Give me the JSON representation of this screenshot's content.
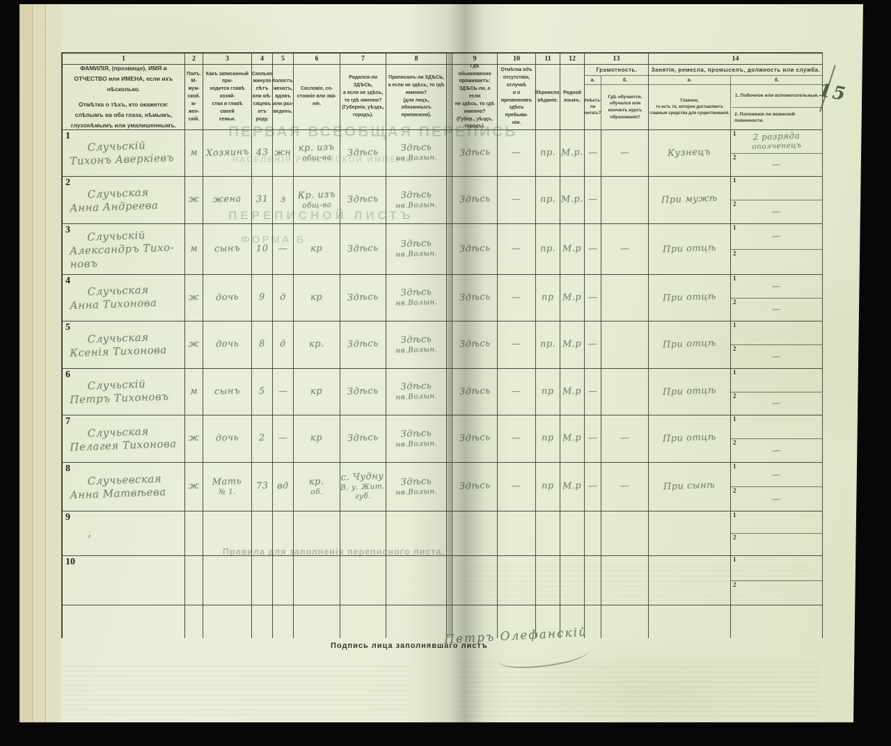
{
  "page": {
    "margin_page_number": "15",
    "signature_label": "Подпись лица заполнявшаго листъ",
    "signature": "Петръ Олефанскій"
  },
  "bleedthrough": {
    "line1": "ПЕРВАЯ ВСЕОБЩАЯ ПЕРЕПИСЬ",
    "line2": "НАСЕЛЕНІЯ РОССІЙСКОЙ ИМПЕРІИ",
    "line3": "ПЕРЕПИСНОЙ ЛИСТЪ",
    "line4": "ФОРМА Б",
    "line5": "Правила для заполненія переписного листа."
  },
  "table": {
    "col_numbers": [
      "1",
      "2",
      "3",
      "4",
      "5",
      "6",
      "7",
      "8",
      "9",
      "10",
      "11",
      "12",
      "13",
      "14"
    ],
    "headers": {
      "c1a": "ФАМИЛІЯ, (прозвище), ИМЯ и ОТЧЕСТВО или ИМЕНА, если ихъ нѣсколько.",
      "c1b": "Отмѣтка о тѣхъ, кто окажется: слѣпымъ на оба глаза, нѣмымъ, глухонѣмымъ или умалишеннымъ.",
      "c2": "Полъ.\nМ-муж-\nской.\nж-жен-\nскій.",
      "c3": "Какъ записанный при-\nходится главѣ хозяй-\nства и главѣ своей\nсемьи.",
      "c4": "Сколько\nминуло\nлѣтъ\nили мѣ-\nсяцевъ\nотъ роду.",
      "c5": "Холостъ,\nженатъ,\nвдовъ\nили раз-\nведенъ.",
      "c6": "Сословіе, со-\nстояніе или зва-\nніе.",
      "c7": "Родился-ли ЗДѢСЬ,\nа если не здѣсь,\nто гдѣ именно?\n(Губернія, уѣздъ, городъ).",
      "c8": "Приписанъ-ли ЗДѢСЬ,\nа если не здѣсь, то гдѣ\nименно?\n(для лицъ, обязанныхъ\nприпискою).",
      "c9": "Гдѣ обыкновенно\nпроживаетъ:\nЗДѢСЬ-ли, а если\nне здѣсь, то гдѣ\nименно?\n(Губер., уѣздъ, городъ).",
      "c10": "Отмѣтка объ\nотсутствіи, отлучкѣ\nи о временномъ\nздѣсь пребыва-\nніи.",
      "c11": "Вѣроиспо-\nвѣданіе.",
      "c12": "Родной\nязыкъ.",
      "c13_title": "Грамотность.",
      "c13_a_label": "а.",
      "c13_b_label": "б.",
      "c13_a": "Умѣетъ-\nли\nчитать?",
      "c13_b": "Гдѣ обучается,\nобучался или\nкончилъ курсъ\nобразованія?",
      "c14_title": "Занятія, ремесла, промыселъ, должность или служба.",
      "c14_a_label": "а.",
      "c14_b_label": "б.",
      "c14_a": "Главное,\nто есть то, которое доставляетъ\nглавныя средства для существованія.",
      "c14_b1": "1.  Побочное или вспомогательныя.",
      "c14_b2": "2.  Положеніе по воинской повинности."
    },
    "row_half_labels": [
      "1",
      "2"
    ],
    "rows": [
      {
        "n": "1",
        "name": [
          "Случьскій",
          "Тихонъ Аверкіевъ"
        ],
        "sex": "м",
        "rel": [
          "Хозяинъ"
        ],
        "age": "43",
        "mar": "жн",
        "est": [
          "кр. изъ",
          "общ-ва"
        ],
        "born": [
          "Здѣсь"
        ],
        "reg": [
          "Здѣсь",
          "нв.Волын."
        ],
        "res": "Здѣсь",
        "abs": "—",
        "faith": "пр.",
        "lang": "М.р.",
        "lit_a": "—",
        "lit_b": "—",
        "occ": [
          "Кузнецъ"
        ],
        "side1": [
          "2 разряда",
          "ополченецъ"
        ],
        "side2": "—"
      },
      {
        "n": "2",
        "name": [
          "Случьская",
          "Анна Андреева"
        ],
        "sex": "ж",
        "rel": [
          "жена"
        ],
        "age": "31",
        "mar": "з",
        "est": [
          "Кр. изъ",
          "общ-ва"
        ],
        "born": [
          "Здѣсь"
        ],
        "reg": [
          "Здѣсь",
          "нв.Волын."
        ],
        "res": "Здѣсь",
        "abs": "—",
        "faith": "пр.",
        "lang": "М.р.",
        "lit_a": "—",
        "lit_b": "",
        "occ": [
          "При мужѣ"
        ],
        "side1": [],
        "side2": "—"
      },
      {
        "n": "3",
        "name": [
          "Случьскій",
          "Александръ Тихо-",
          "новъ"
        ],
        "sex": "м",
        "rel": [
          "сынъ"
        ],
        "age": "10",
        "mar": "—",
        "est": [
          "кр"
        ],
        "born": [
          "Здѣсь"
        ],
        "reg": [
          "Здѣсь",
          "нв.Волын."
        ],
        "res": "Здѣсь",
        "abs": "—",
        "faith": "пр.",
        "lang": "М.р",
        "lit_a": "—",
        "lit_b": "—",
        "occ": [
          "При отцѣ"
        ],
        "side1": [
          "—"
        ],
        "side2": ""
      },
      {
        "n": "4",
        "name": [
          "Случьская",
          "Анна Тихонова"
        ],
        "sex": "ж",
        "rel": [
          "дочь"
        ],
        "age": "9",
        "mar": "д",
        "est": [
          "кр"
        ],
        "born": [
          "Здѣсь"
        ],
        "reg": [
          "Здѣсь",
          "нв.Волын."
        ],
        "res": "Здѣсь",
        "abs": "—",
        "faith": "пр",
        "lang": "М.р",
        "lit_a": "—",
        "lit_b": "",
        "occ": [
          "При отцѣ"
        ],
        "side1": [
          "—"
        ],
        "side2": "—"
      },
      {
        "n": "5",
        "name": [
          "Случьская",
          "Ксенія Тихонова"
        ],
        "sex": "ж",
        "rel": [
          "дочь"
        ],
        "age": "8",
        "mar": "д",
        "est": [
          "кр."
        ],
        "born": [
          "Здѣсь"
        ],
        "reg": [
          "Здѣсь",
          "нв.Волын."
        ],
        "res": "Здѣсь",
        "abs": "—",
        "faith": "пр.",
        "lang": "М.р",
        "lit_a": "—",
        "lit_b": "",
        "occ": [
          "При отцѣ"
        ],
        "side1": [],
        "side2": "—"
      },
      {
        "n": "6",
        "name": [
          "Случьскій",
          "Петръ Тихоновъ"
        ],
        "sex": "м",
        "rel": [
          "сынъ"
        ],
        "age": "5",
        "mar": "—",
        "est": [
          "кр"
        ],
        "born": [
          "Здѣсь"
        ],
        "reg": [
          "Здѣсь",
          "нв.Волын."
        ],
        "res": "Здѣсь",
        "abs": "—",
        "faith": "пр",
        "lang": "М.р",
        "lit_a": "—",
        "lit_b": "",
        "occ": [
          "При отцѣ"
        ],
        "side1": [],
        "side2": "—"
      },
      {
        "n": "7",
        "name": [
          "Случьская",
          "Пелагея Тихонова"
        ],
        "sex": "ж",
        "rel": [
          "дочь"
        ],
        "age": "2",
        "mar": "—",
        "est": [
          "кр"
        ],
        "born": [
          "Здѣсь"
        ],
        "reg": [
          "Здѣсь",
          "нв.Волын."
        ],
        "res": "Здѣсь",
        "abs": "—",
        "faith": "пр",
        "lang": "М.р",
        "lit_a": "—",
        "lit_b": "—",
        "occ": [
          "При отцѣ"
        ],
        "side1": [],
        "side2": "—"
      },
      {
        "n": "8",
        "name": [
          "Случьевская",
          "Анна Матвѣева"
        ],
        "sex": "ж",
        "rel": [
          "Мать",
          "№ 1."
        ],
        "age": "73",
        "mar": "вд",
        "est": [
          "кр.",
          "об."
        ],
        "born": [
          "с. Чудну",
          "В. у. Жит.",
          "губ."
        ],
        "reg": [
          "Здѣсь",
          "нв.Волын."
        ],
        "res": "Здѣсь",
        "abs": "—",
        "faith": "пр",
        "lang": "М.р",
        "lit_a": "—",
        "lit_b": "—",
        "occ": [
          "При сынѣ"
        ],
        "side1": [
          "—"
        ],
        "side2": "—"
      },
      {
        "n": "9",
        "name": [
          ","
        ],
        "sex": "",
        "rel": [],
        "age": "",
        "mar": "",
        "est": [],
        "born": [],
        "reg": [],
        "res": "",
        "abs": "",
        "faith": "",
        "lang": "",
        "lit_a": "",
        "lit_b": "",
        "occ": [],
        "side1": [],
        "side2": ""
      },
      {
        "n": "10",
        "name": [],
        "sex": "",
        "rel": [],
        "age": "",
        "mar": "",
        "est": [],
        "born": [],
        "reg": [],
        "res": "",
        "abs": "",
        "faith": "",
        "lang": "",
        "lit_a": "",
        "lit_b": "",
        "occ": [],
        "side1": [],
        "side2": ""
      }
    ]
  }
}
